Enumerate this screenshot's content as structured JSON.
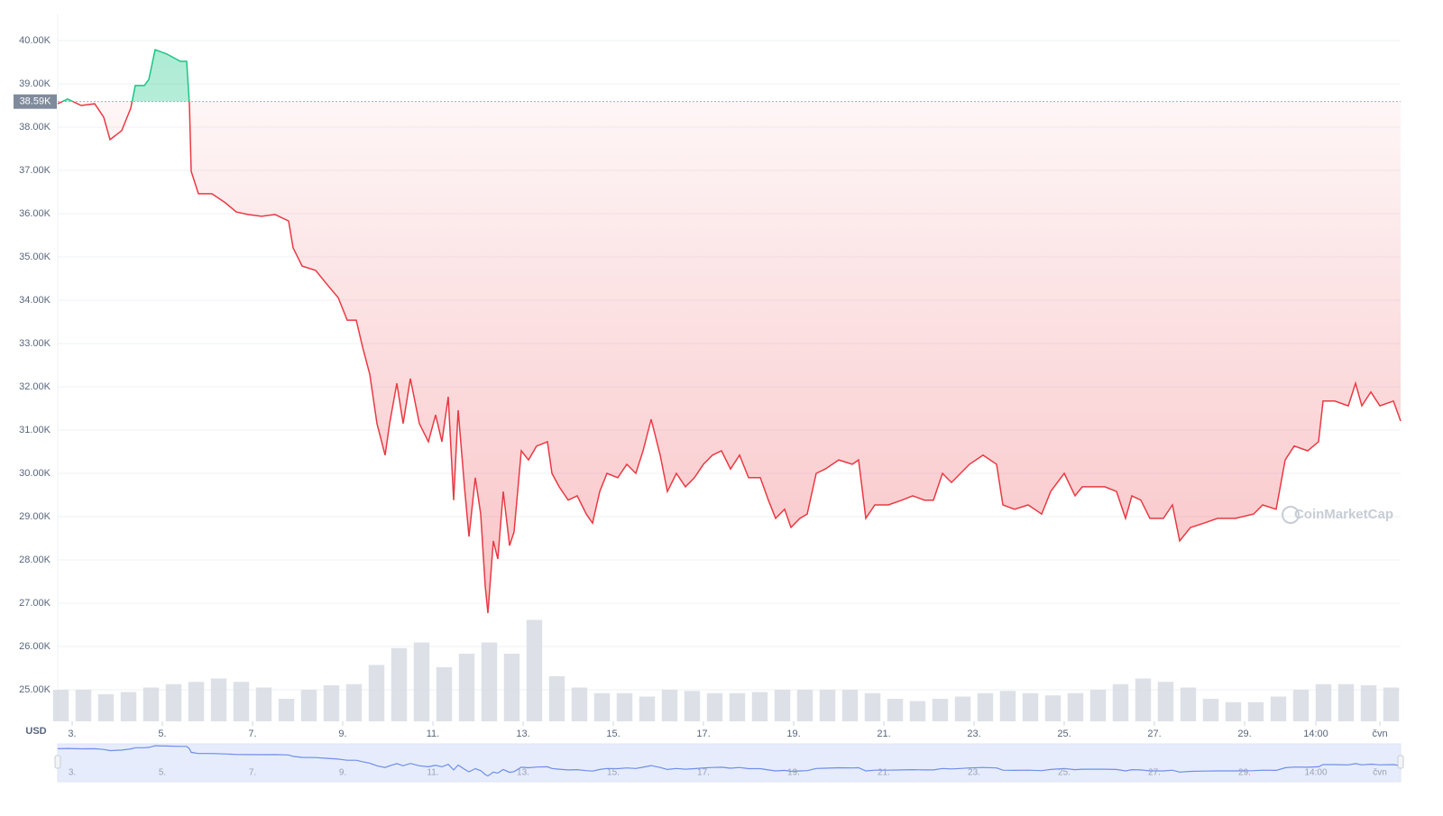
{
  "chart_data": {
    "type": "line",
    "y_label": "USD",
    "watermark": "CoinMarketCap",
    "up_color": "#16c784",
    "down_color": "#ea3943",
    "reference": {
      "value": 38590,
      "label": "38.59K"
    },
    "x": [
      2.68,
      2.9,
      3.2,
      3.5,
      3.7,
      3.84,
      4.1,
      4.3,
      4.4,
      4.6,
      4.7,
      4.84,
      5.1,
      5.4,
      5.54,
      5.6,
      5.64,
      5.8,
      6.1,
      6.4,
      6.64,
      6.9,
      7.2,
      7.5,
      7.8,
      7.9,
      8.1,
      8.4,
      8.64,
      8.9,
      9.1,
      9.3,
      9.44,
      9.6,
      9.76,
      9.94,
      10.04,
      10.2,
      10.34,
      10.5,
      10.7,
      10.9,
      11.06,
      11.2,
      11.34,
      11.46,
      11.56,
      11.7,
      11.8,
      11.94,
      12.06,
      12.16,
      12.22,
      12.34,
      12.44,
      12.56,
      12.7,
      12.8,
      12.96,
      13.12,
      13.3,
      13.54,
      13.64,
      13.8,
      14,
      14.2,
      14.4,
      14.54,
      14.7,
      14.86,
      15.1,
      15.3,
      15.5,
      15.66,
      15.84,
      16.04,
      16.2,
      16.4,
      16.6,
      16.8,
      17,
      17.2,
      17.4,
      17.6,
      17.8,
      18,
      18.26,
      18.44,
      18.6,
      18.8,
      18.94,
      19.14,
      19.3,
      19.5,
      19.7,
      20,
      20.3,
      20.44,
      20.6,
      20.8,
      21.1,
      21.4,
      21.64,
      21.9,
      22.1,
      22.3,
      22.5,
      22.7,
      22.9,
      23.2,
      23.5,
      23.64,
      23.9,
      24.2,
      24.5,
      24.7,
      25,
      25.24,
      25.4,
      25.64,
      25.9,
      26.16,
      26.36,
      26.5,
      26.7,
      26.9,
      27.2,
      27.4,
      27.56,
      27.8,
      28.1,
      28.4,
      28.8,
      29.2,
      29.4,
      29.7,
      29.9,
      30.1,
      30.4,
      30.64,
      30.74,
      31,
      31.3,
      31.46,
      31.6,
      31.8,
      32,
      32.3,
      32.46
    ],
    "values": [
      38540,
      38650,
      38500,
      38540,
      38230,
      37710,
      37920,
      38440,
      38960,
      38960,
      39100,
      39790,
      39690,
      39520,
      39520,
      38540,
      36980,
      36460,
      36460,
      36250,
      36040,
      35980,
      35940,
      35980,
      35830,
      35210,
      34790,
      34690,
      34380,
      34060,
      33540,
      33540,
      32920,
      32290,
      31150,
      30420,
      31150,
      32080,
      31150,
      32190,
      31150,
      30730,
      31350,
      30730,
      31770,
      29380,
      31460,
      29690,
      28540,
      29900,
      29060,
      27400,
      26770,
      28440,
      28020,
      29580,
      28330,
      28650,
      30520,
      30310,
      30630,
      30730,
      30000,
      29690,
      29380,
      29480,
      29060,
      28850,
      29580,
      30000,
      29900,
      30210,
      30000,
      30520,
      31250,
      30420,
      29580,
      30000,
      29690,
      29900,
      30210,
      30420,
      30520,
      30100,
      30420,
      29900,
      29900,
      29380,
      28960,
      29170,
      28750,
      28960,
      29060,
      30000,
      30100,
      30310,
      30210,
      30310,
      28960,
      29270,
      29270,
      29380,
      29480,
      29380,
      29380,
      30000,
      29790,
      30000,
      30210,
      30420,
      30210,
      29270,
      29170,
      29270,
      29060,
      29580,
      30000,
      29480,
      29690,
      29690,
      29690,
      29580,
      28960,
      29480,
      29380,
      28960,
      28960,
      29270,
      28440,
      28750,
      28850,
      28960,
      28960,
      29060,
      29270,
      29170,
      30310,
      30630,
      30520,
      30730,
      31670,
      31670,
      31560,
      32080,
      31560,
      31880,
      31560,
      31670,
      31210
    ],
    "xlim": [
      2.68,
      32.46
    ],
    "xticks": [
      {
        "value": 3,
        "label": "3."
      },
      {
        "value": 5,
        "label": "5."
      },
      {
        "value": 7,
        "label": "7."
      },
      {
        "value": 9,
        "label": "9."
      },
      {
        "value": 11,
        "label": "11."
      },
      {
        "value": 13,
        "label": "13."
      },
      {
        "value": 15,
        "label": "15."
      },
      {
        "value": 17,
        "label": "17."
      },
      {
        "value": 19,
        "label": "19."
      },
      {
        "value": 21,
        "label": "21."
      },
      {
        "value": 23,
        "label": "23."
      },
      {
        "value": 25,
        "label": "25."
      },
      {
        "value": 27,
        "label": "27."
      },
      {
        "value": 29,
        "label": "29."
      },
      {
        "value": 30.58,
        "label": "14:00"
      },
      {
        "value": 32,
        "label": "čvn"
      }
    ],
    "ylim": [
      24270,
      40625
    ],
    "yticks": [
      {
        "value": 25000,
        "label": "25.00K"
      },
      {
        "value": 26000,
        "label": "26.00K"
      },
      {
        "value": 27000,
        "label": "27.00K"
      },
      {
        "value": 28000,
        "label": "28.00K"
      },
      {
        "value": 29000,
        "label": "29.00K"
      },
      {
        "value": 30000,
        "label": "30.00K"
      },
      {
        "value": 31000,
        "label": "31.00K"
      },
      {
        "value": 32000,
        "label": "32.00K"
      },
      {
        "value": 33000,
        "label": "33.00K"
      },
      {
        "value": 34000,
        "label": "34.00K"
      },
      {
        "value": 35000,
        "label": "35.00K"
      },
      {
        "value": 36000,
        "label": "36.00K"
      },
      {
        "value": 37000,
        "label": "37.00K"
      },
      {
        "value": 38000,
        "label": "38.00K"
      },
      {
        "value": 39000,
        "label": "39.00K"
      },
      {
        "value": 40000,
        "label": "40.00K"
      }
    ],
    "grid": true,
    "volume": {
      "color": "#d5d9e1",
      "vlim": [
        0,
        100
      ],
      "x": [
        2.75,
        3.25,
        3.75,
        4.25,
        4.75,
        5.25,
        5.75,
        6.25,
        6.75,
        7.25,
        7.75,
        8.25,
        8.75,
        9.25,
        9.75,
        10.25,
        10.75,
        11.25,
        11.75,
        12.25,
        12.75,
        13.25,
        13.75,
        14.25,
        14.75,
        15.25,
        15.75,
        16.25,
        16.75,
        17.25,
        17.75,
        18.25,
        18.75,
        19.25,
        19.75,
        20.25,
        20.75,
        21.25,
        21.75,
        22.25,
        22.75,
        23.25,
        23.75,
        24.25,
        24.75,
        25.25,
        25.75,
        26.25,
        26.75,
        27.25,
        27.75,
        28.25,
        28.75,
        29.25,
        29.75,
        30.25,
        30.75,
        31.25,
        31.75,
        32.25
      ],
      "values": [
        28,
        28,
        24,
        26,
        30,
        33,
        35,
        38,
        35,
        30,
        20,
        28,
        32,
        33,
        50,
        65,
        70,
        48,
        60,
        70,
        60,
        90,
        40,
        30,
        25,
        25,
        22,
        28,
        27,
        25,
        25,
        26,
        28,
        28,
        28,
        28,
        25,
        20,
        18,
        20,
        22,
        25,
        27,
        25,
        23,
        25,
        28,
        33,
        38,
        35,
        30,
        20,
        17,
        17,
        22,
        28,
        33,
        33,
        32,
        30
      ]
    },
    "navigator_color": "#6e8ee8"
  }
}
